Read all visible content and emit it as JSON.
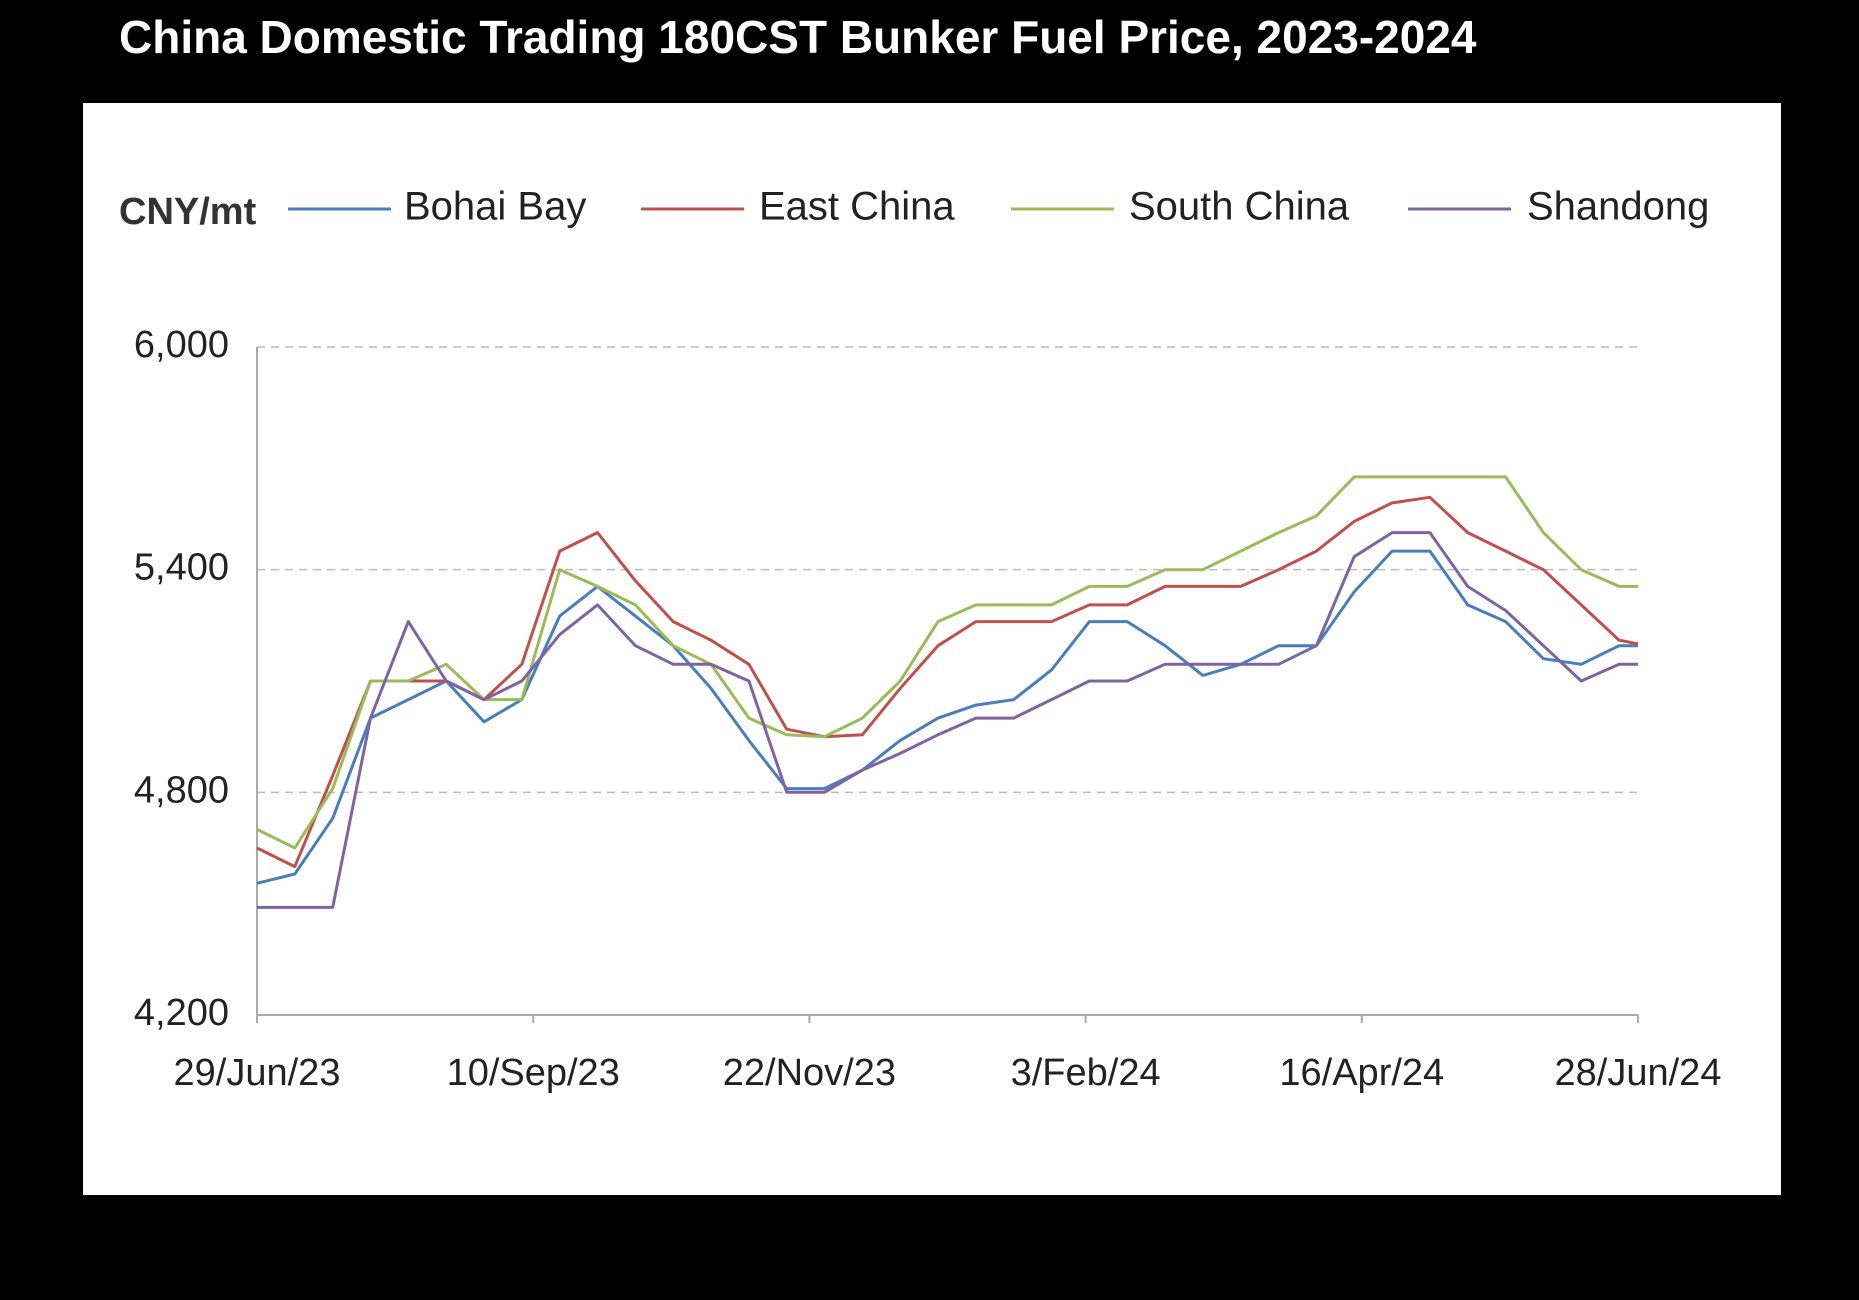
{
  "chart_data": {
    "type": "line",
    "title": "China Domestic Trading 180CST Bunker Fuel Price, 2023-2024",
    "y_label": "CNY/mt",
    "x": [
      "2023-06-29",
      "2023-07-09",
      "2023-07-19",
      "2023-07-29",
      "2023-08-08",
      "2023-08-18",
      "2023-08-28",
      "2023-09-07",
      "2023-09-17",
      "2023-09-27",
      "2023-10-07",
      "2023-10-17",
      "2023-10-27",
      "2023-11-06",
      "2023-11-16",
      "2023-11-26",
      "2023-12-06",
      "2023-12-16",
      "2023-12-26",
      "2024-01-05",
      "2024-01-15",
      "2024-01-25",
      "2024-02-04",
      "2024-02-14",
      "2024-02-24",
      "2024-03-05",
      "2024-03-15",
      "2024-03-25",
      "2024-04-04",
      "2024-04-14",
      "2024-04-24",
      "2024-05-04",
      "2024-05-14",
      "2024-05-24",
      "2024-06-03",
      "2024-06-13",
      "2024-06-23",
      "2024-06-28"
    ],
    "series": [
      {
        "name": "Bohai Bay",
        "color": "#4a7ebb",
        "values": [
          4555,
          4580,
          4730,
          5000,
          5050,
          5100,
          4990,
          5050,
          5275,
          5355,
          5275,
          5195,
          5080,
          4940,
          4810,
          4810,
          4860,
          4940,
          5000,
          5035,
          5050,
          5130,
          5260,
          5260,
          5195,
          5115,
          5145,
          5195,
          5195,
          5340,
          5450,
          5450,
          5305,
          5260,
          5160,
          5145,
          5195,
          5195
        ]
      },
      {
        "name": "East China",
        "color": "#c0504d",
        "values": [
          4650,
          4600,
          4845,
          5100,
          5100,
          5100,
          5050,
          5145,
          5450,
          5500,
          5370,
          5260,
          5210,
          5145,
          4970,
          4950,
          4955,
          5080,
          5195,
          5260,
          5260,
          5260,
          5305,
          5305,
          5355,
          5355,
          5355,
          5400,
          5450,
          5530,
          5580,
          5595,
          5500,
          5450,
          5400,
          5305,
          5210,
          5200
        ]
      },
      {
        "name": "South China",
        "color": "#9bbb59",
        "values": [
          4700,
          4650,
          4810,
          5100,
          5100,
          5145,
          5050,
          5050,
          5400,
          5355,
          5305,
          5195,
          5145,
          5000,
          4955,
          4950,
          5000,
          5100,
          5260,
          5305,
          5305,
          5305,
          5355,
          5355,
          5400,
          5400,
          5450,
          5500,
          5545,
          5650,
          5650,
          5650,
          5650,
          5650,
          5500,
          5400,
          5355,
          5355
        ]
      },
      {
        "name": "Shandong",
        "color": "#7f64a2",
        "values": [
          4490,
          4490,
          4490,
          5000,
          5260,
          5100,
          5050,
          5100,
          5225,
          5305,
          5195,
          5145,
          5145,
          5100,
          4800,
          4800,
          4860,
          4905,
          4955,
          5000,
          5000,
          5050,
          5100,
          5100,
          5145,
          5145,
          5145,
          5145,
          5195,
          5435,
          5500,
          5500,
          5355,
          5290,
          5195,
          5100,
          5145,
          5145
        ]
      }
    ],
    "xlim": [
      "2023-06-29",
      "2024-06-28"
    ],
    "xticks": [
      {
        "value": "2023-06-29",
        "label": "29/Jun/23"
      },
      {
        "value": "2023-09-10",
        "label": "10/Sep/23"
      },
      {
        "value": "2023-11-22",
        "label": "22/Nov/23"
      },
      {
        "value": "2024-02-03",
        "label": "3/Feb/24"
      },
      {
        "value": "2024-04-16",
        "label": "16/Apr/24"
      },
      {
        "value": "2024-06-28",
        "label": "28/Jun/24"
      }
    ],
    "ylim": [
      4200,
      6000
    ],
    "yticks": [
      {
        "value": 4200,
        "label": "4,200"
      },
      {
        "value": 4800,
        "label": "4,800"
      },
      {
        "value": 5400,
        "label": "5,400"
      },
      {
        "value": 6000,
        "label": "6,000"
      }
    ],
    "grid": true,
    "legend": "top"
  }
}
